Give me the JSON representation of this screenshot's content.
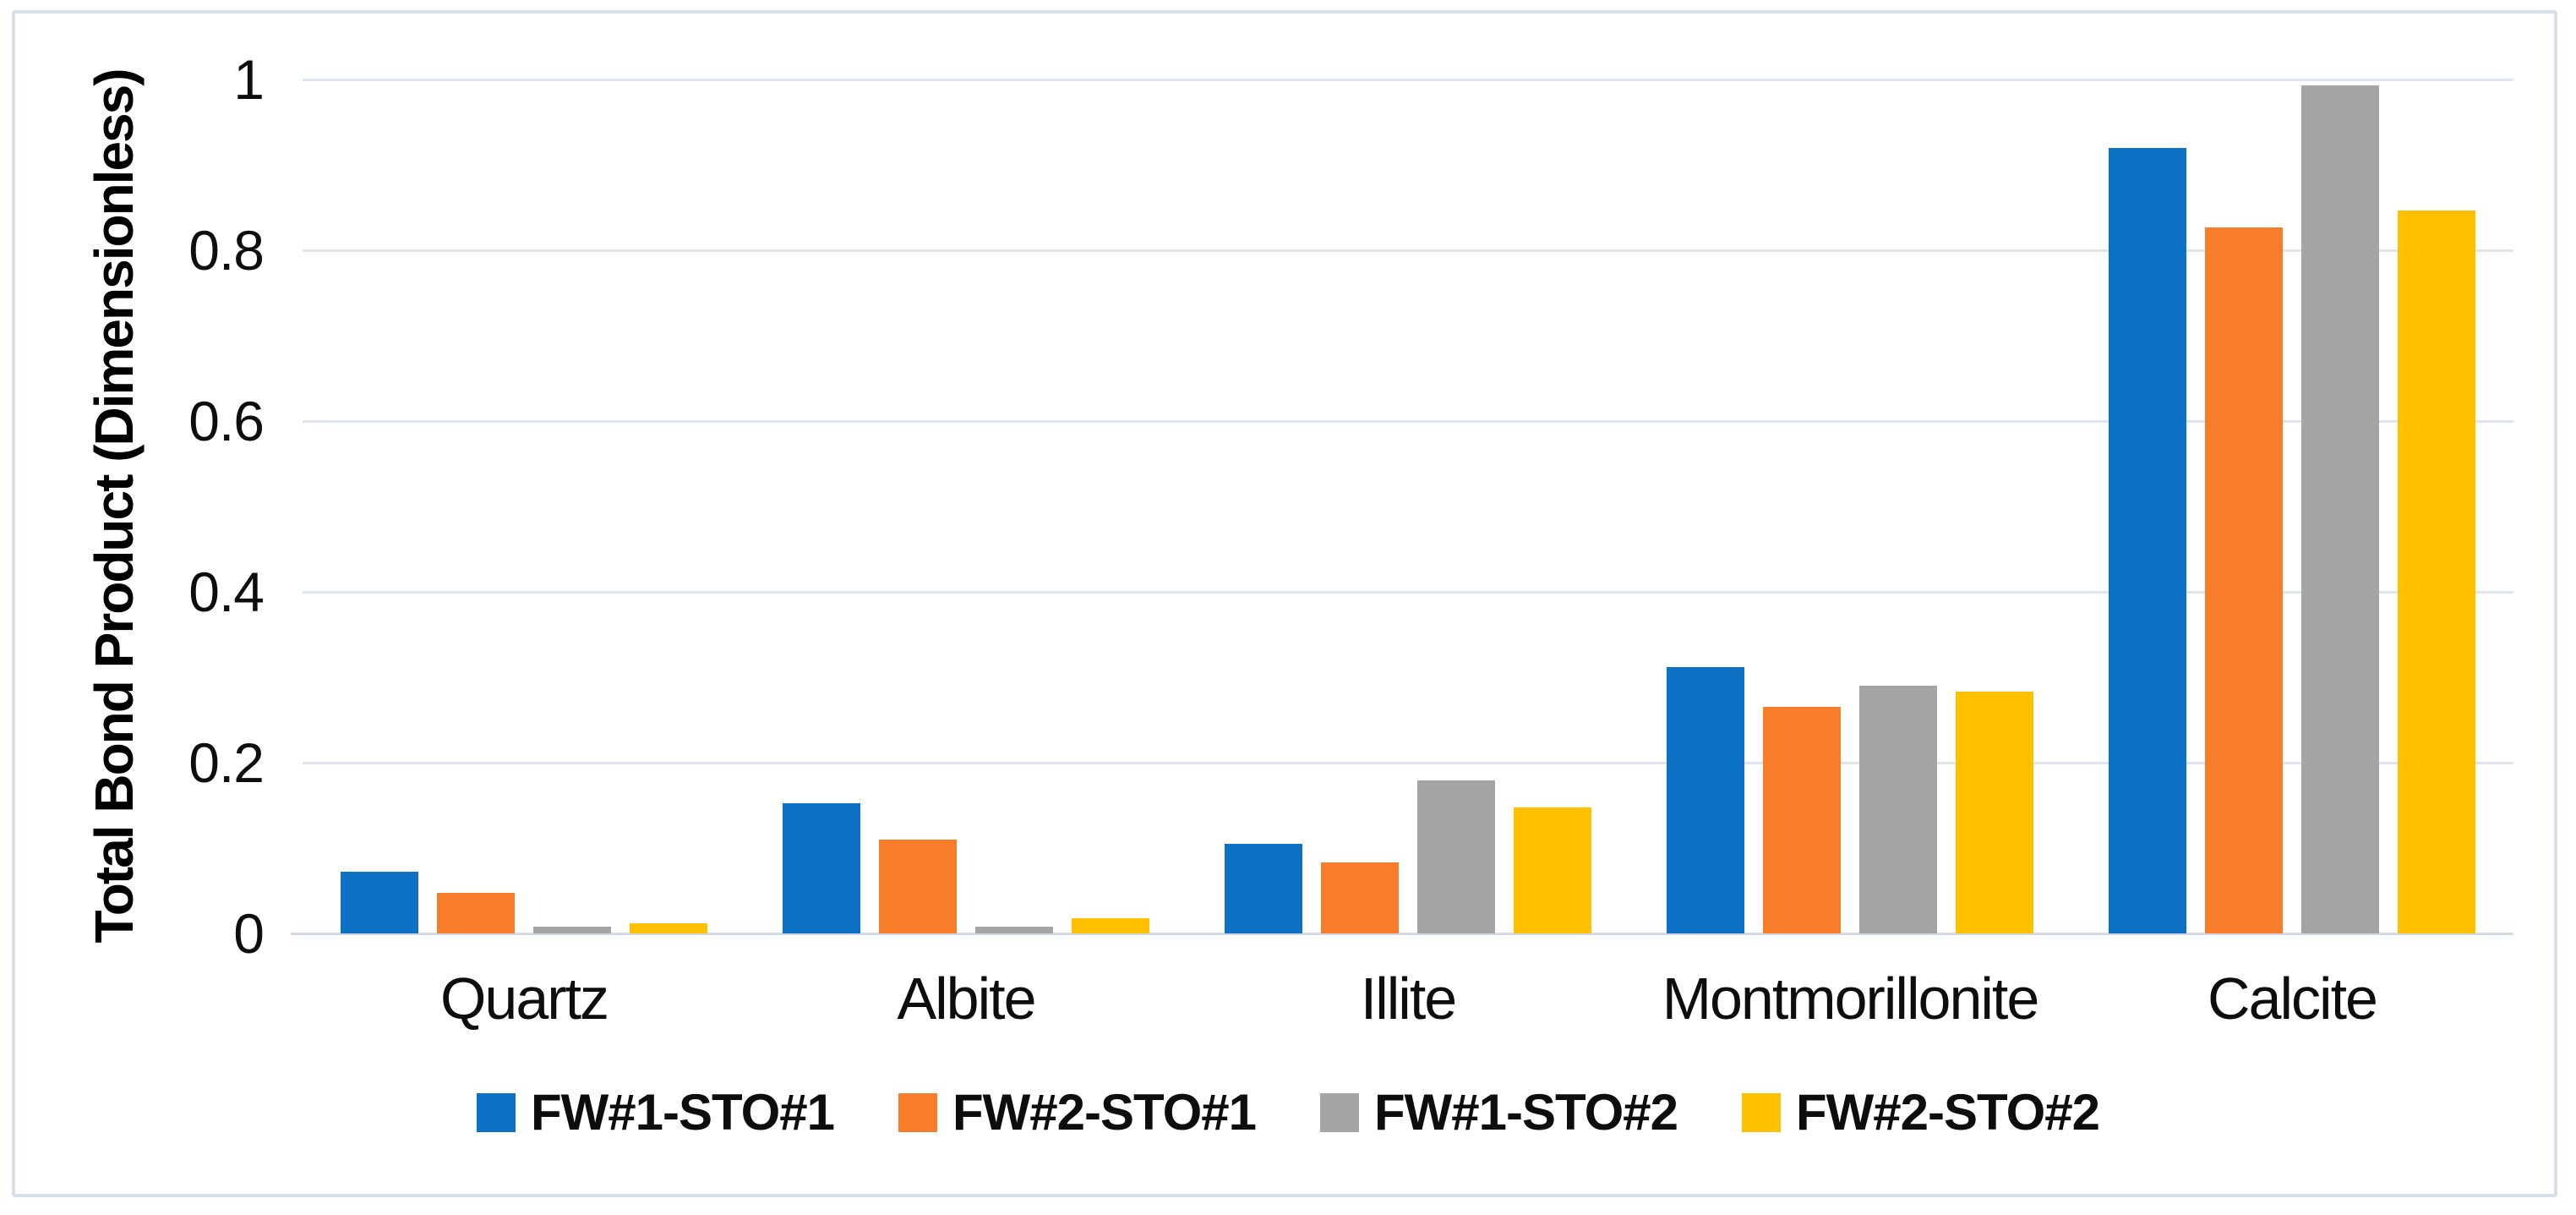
{
  "figure": {
    "background_color": "#ffffff",
    "border_color": "#d7dfea",
    "gridline_color": "#dee5ef",
    "baseline_color": "#d3dbe7",
    "text_color": "#0d0d0d"
  },
  "chart_data": {
    "type": "bar",
    "title": "",
    "xlabel": "",
    "ylabel": "Total Bond Product (Dimensionless)",
    "ylim": [
      0,
      1
    ],
    "yticks": [
      0,
      0.2,
      0.4,
      0.6,
      0.8,
      1
    ],
    "ytick_labels": [
      "0",
      "0.2",
      "0.4",
      "0.6",
      "0.8",
      "1"
    ],
    "grid": "horizontal",
    "legend_position": "bottom",
    "categories": [
      "Quartz",
      "Albite",
      "Illite",
      "Montmorillonite",
      "Calcite"
    ],
    "series": [
      {
        "name": "FW#1-STO#1",
        "color": "#0d72c6",
        "values": [
          0.072,
          0.152,
          0.105,
          0.312,
          0.92
        ]
      },
      {
        "name": "FW#2-STO#1",
        "color": "#f87d2a",
        "values": [
          0.048,
          0.11,
          0.083,
          0.265,
          0.827
        ]
      },
      {
        "name": "FW#1-STO#2",
        "color": "#a5a5a5",
        "values": [
          0.008,
          0.008,
          0.179,
          0.29,
          0.993
        ]
      },
      {
        "name": "FW#2-STO#2",
        "color": "#ffc000",
        "values": [
          0.012,
          0.018,
          0.148,
          0.283,
          0.847
        ]
      }
    ]
  }
}
